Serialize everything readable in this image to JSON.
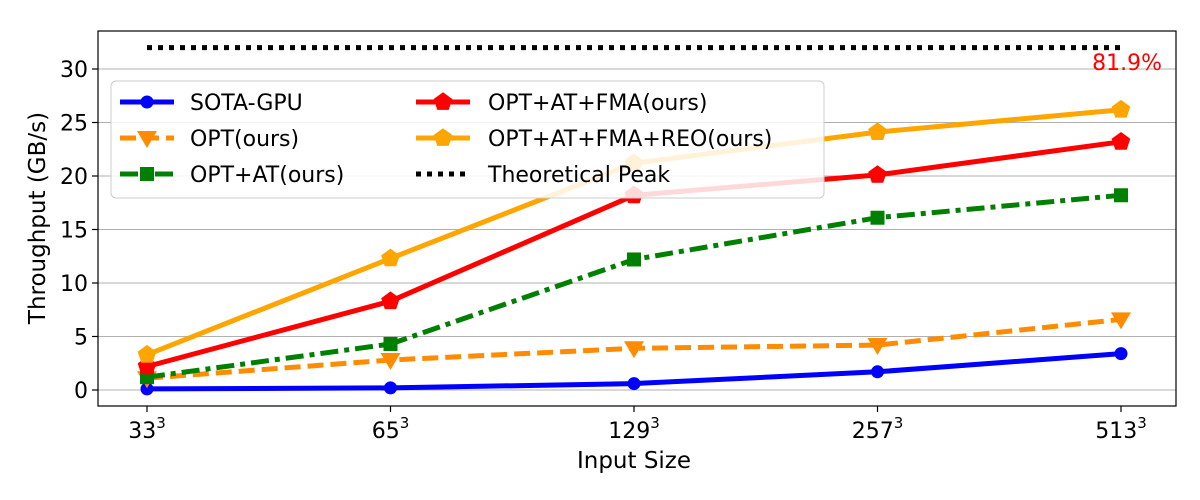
{
  "chart_data": {
    "type": "line",
    "title": "",
    "xlabel": "Input Size",
    "ylabel": "Throughput (GB/s)",
    "categories": [
      {
        "base": "33",
        "exp": "3"
      },
      {
        "base": "65",
        "exp": "3"
      },
      {
        "base": "129",
        "exp": "3"
      },
      {
        "base": "257",
        "exp": "3"
      },
      {
        "base": "513",
        "exp": "3"
      }
    ],
    "ylim": [
      -1.5,
      33.5
    ],
    "yticks": [
      0,
      5,
      10,
      15,
      20,
      25,
      30
    ],
    "grid": "horizontal",
    "legend_position": "upper-left",
    "series": [
      {
        "name": "SOTA-GPU",
        "color": "#0000ff",
        "dash": "solid",
        "marker": "circle",
        "values": [
          0.1,
          0.2,
          0.6,
          1.7,
          3.4
        ]
      },
      {
        "name": "OPT(ours)",
        "color": "#ff8c00",
        "dash": "dashed",
        "marker": "triangle-down",
        "values": [
          1.1,
          2.8,
          3.9,
          4.2,
          6.6
        ]
      },
      {
        "name": "OPT+AT(ours)",
        "color": "#008000",
        "dash": "dashdot",
        "marker": "square",
        "values": [
          1.2,
          4.3,
          12.2,
          16.1,
          18.2
        ]
      },
      {
        "name": "OPT+AT+FMA(ours)",
        "color": "#ff0000",
        "dash": "solid",
        "marker": "pentagon",
        "values": [
          2.2,
          8.3,
          18.2,
          20.1,
          23.2
        ]
      },
      {
        "name": "OPT+AT+FMA+REO(ours)",
        "color": "#ffa500",
        "dash": "solid",
        "marker": "pentagon",
        "values": [
          3.3,
          12.3,
          21.2,
          24.1,
          26.2
        ]
      },
      {
        "name": "Theoretical Peak",
        "color": "#000000",
        "dash": "dotted",
        "marker": "none",
        "values": [
          32,
          32,
          32,
          32,
          32
        ]
      }
    ],
    "annotations": [
      {
        "text": "81.9%",
        "color": "#ff0000",
        "attach": "last-point-below-peak"
      }
    ]
  }
}
